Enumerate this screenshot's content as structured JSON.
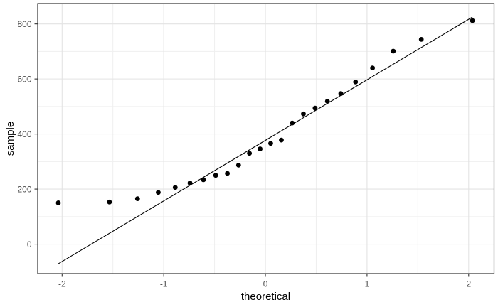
{
  "chart_data": {
    "type": "scatter",
    "title": "",
    "xlabel": "theoretical",
    "ylabel": "sample",
    "xlim": [
      -2.24,
      2.25
    ],
    "ylim": [
      -107,
      874
    ],
    "x_major_ticks": [
      -2,
      -1,
      0,
      1,
      2
    ],
    "x_tick_labels": [
      "-2",
      "-1",
      "0",
      "1",
      "2"
    ],
    "x_minor_gridlines": [
      -1.5,
      -0.5,
      0.5,
      1.5
    ],
    "y_major_ticks": [
      0,
      200,
      400,
      600,
      800
    ],
    "y_tick_labels": [
      "0",
      "200",
      "400",
      "600",
      "800"
    ],
    "y_minor_gridlines": [
      100,
      300,
      500,
      700
    ],
    "grid": "major-and-minor",
    "legend": "none",
    "points": [
      [
        -2.037,
        150
      ],
      [
        -1.534,
        153
      ],
      [
        -1.258,
        165
      ],
      [
        -1.054,
        188
      ],
      [
        -0.887,
        206
      ],
      [
        -0.742,
        222
      ],
      [
        -0.61,
        234
      ],
      [
        -0.489,
        250
      ],
      [
        -0.374,
        257
      ],
      [
        -0.264,
        287
      ],
      [
        -0.157,
        330
      ],
      [
        -0.052,
        346
      ],
      [
        0.052,
        366
      ],
      [
        0.157,
        378
      ],
      [
        0.264,
        440
      ],
      [
        0.374,
        473
      ],
      [
        0.489,
        494
      ],
      [
        0.61,
        519
      ],
      [
        0.742,
        547
      ],
      [
        0.887,
        589
      ],
      [
        1.054,
        640
      ],
      [
        1.258,
        701
      ],
      [
        1.534,
        744
      ],
      [
        2.037,
        812
      ]
    ],
    "qq_line": {
      "x1": -2.037,
      "y1": -71,
      "x2": 2.037,
      "y2": 825
    },
    "point_color": "#000000",
    "line_color": "#000000"
  },
  "theme": {
    "background": "#ffffff",
    "panel_border": "#333333",
    "grid_major": "#e3e3e3",
    "grid_minor": "#efefef",
    "tick_color": "#333333",
    "tick_label_color": "#4d4d4d",
    "axis_title_color": "#000000"
  }
}
